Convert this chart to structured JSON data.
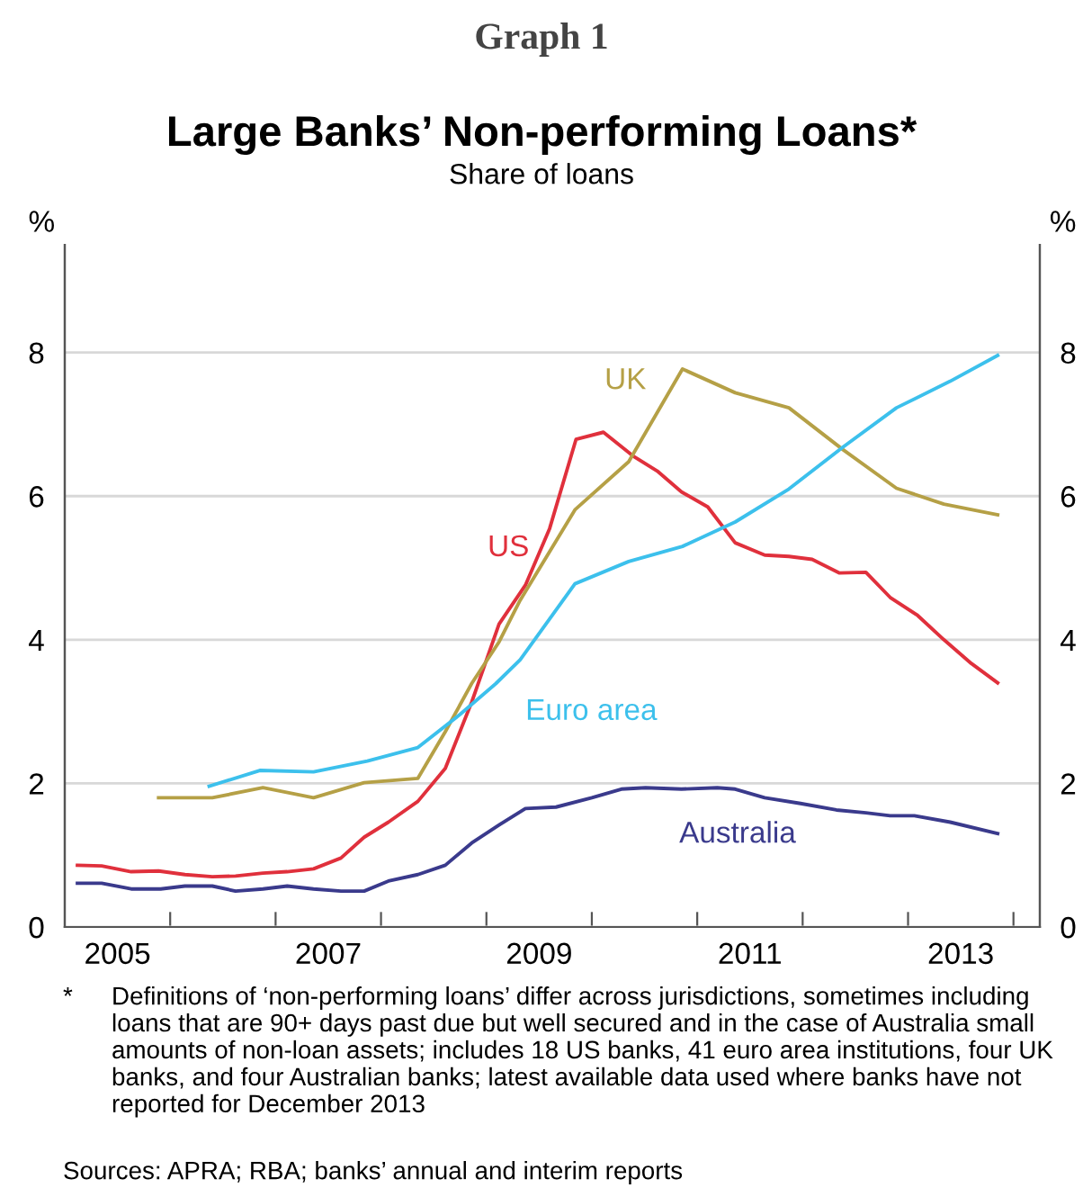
{
  "chart_data": {
    "type": "line",
    "title": "Large Banks’ Non-performing Loans*",
    "subtitle": "Share of loans",
    "ylabel": "%",
    "y2label": "%",
    "annotations": [
      "Graph 1",
      "*",
      "Definitions of ‘non-performing loans’ differ across jurisdictions, sometimes including loans that are 90+ days past due but well secured and in the case of Australia small amounts of non-loan assets; includes 18 US banks, 41 euro area institutions, four UK banks, and four Australian banks; latest available data used where banks have not reported for December 2013",
      "Sources: APRA; RBA; banks’ annual and interim reports"
    ],
    "series": [
      {
        "name": "US",
        "color": "#e0303c",
        "x": [
          2005.12,
          2005.35,
          2005.63,
          2005.89,
          2006.14,
          2006.4,
          2006.62,
          2006.88,
          2007.11,
          2007.36,
          2007.62,
          2007.84,
          2008.07,
          2008.35,
          2008.61,
          2008.86,
          2009.12,
          2009.37,
          2009.6,
          2009.85,
          2010.11,
          2010.39,
          2010.62,
          2010.85,
          2011.1,
          2011.36,
          2011.64,
          2011.87,
          2012.09,
          2012.35,
          2012.6,
          2012.83,
          2013.09,
          2013.34,
          2013.6,
          2013.85
        ],
        "values": [
          0.86,
          0.85,
          0.77,
          0.78,
          0.73,
          0.7,
          0.71,
          0.75,
          0.77,
          0.81,
          0.96,
          1.25,
          1.46,
          1.75,
          2.21,
          3.13,
          4.22,
          4.76,
          5.55,
          6.79,
          6.89,
          6.56,
          6.35,
          6.06,
          5.85,
          5.35,
          5.18,
          5.16,
          5.12,
          4.93,
          4.94,
          4.59,
          4.34,
          4.0,
          3.67,
          3.4
        ]
      },
      {
        "name": "UK",
        "color": "#b5a046",
        "x": [
          2005.89,
          2006.4,
          2006.88,
          2007.36,
          2007.84,
          2008.35,
          2008.61,
          2008.86,
          2009.12,
          2009.32,
          2009.84,
          2010.35,
          2010.86,
          2011.36,
          2011.87,
          2012.38,
          2012.89,
          2013.34,
          2013.85
        ],
        "values": [
          1.8,
          1.8,
          1.94,
          1.8,
          2.01,
          2.07,
          2.72,
          3.39,
          3.97,
          4.55,
          5.81,
          6.48,
          7.77,
          7.44,
          7.23,
          6.65,
          6.11,
          5.89,
          5.74
        ]
      },
      {
        "name": "Euro area",
        "color": "#3cc0ec",
        "x": [
          2006.37,
          2006.85,
          2007.36,
          2007.87,
          2008.35,
          2008.75,
          2009.09,
          2009.32,
          2009.84,
          2010.35,
          2010.86,
          2011.36,
          2011.87,
          2012.38,
          2012.89,
          2013.4,
          2013.85
        ],
        "values": [
          1.96,
          2.18,
          2.16,
          2.31,
          2.5,
          2.96,
          3.39,
          3.72,
          4.78,
          5.09,
          5.3,
          5.64,
          6.1,
          6.68,
          7.23,
          7.6,
          7.96
        ]
      },
      {
        "name": "Australia",
        "color": "#3a3a8c",
        "x": [
          2005.12,
          2005.35,
          2005.63,
          2005.91,
          2006.14,
          2006.4,
          2006.62,
          2006.88,
          2007.11,
          2007.36,
          2007.62,
          2007.84,
          2008.07,
          2008.35,
          2008.61,
          2008.86,
          2009.12,
          2009.37,
          2009.66,
          2010.0,
          2010.28,
          2010.51,
          2010.85,
          2011.19,
          2011.36,
          2011.64,
          2011.98,
          2012.32,
          2012.6,
          2012.83,
          2013.06,
          2013.4,
          2013.85
        ],
        "values": [
          0.61,
          0.61,
          0.53,
          0.53,
          0.57,
          0.57,
          0.5,
          0.53,
          0.57,
          0.53,
          0.5,
          0.5,
          0.64,
          0.73,
          0.86,
          1.17,
          1.42,
          1.65,
          1.67,
          1.8,
          1.92,
          1.94,
          1.92,
          1.94,
          1.92,
          1.8,
          1.72,
          1.63,
          1.59,
          1.55,
          1.55,
          1.46,
          1.3
        ]
      }
    ],
    "xlim": [
      2005,
      2014.25
    ],
    "xticks": [
      {
        "value": 2005.5,
        "label": "2005"
      },
      {
        "value": 2006,
        "label": null
      },
      {
        "value": 2007,
        "label": null
      },
      {
        "value": 2007.5,
        "label": "2007"
      },
      {
        "value": 2008,
        "label": null
      },
      {
        "value": 2009,
        "label": null
      },
      {
        "value": 2009.5,
        "label": "2009"
      },
      {
        "value": 2010,
        "label": null
      },
      {
        "value": 2011,
        "label": null
      },
      {
        "value": 2011.5,
        "label": "2011"
      },
      {
        "value": 2012,
        "label": null
      },
      {
        "value": 2013,
        "label": null
      },
      {
        "value": 2013.5,
        "label": "2013"
      },
      {
        "value": 2014,
        "label": null
      }
    ],
    "ylim": [
      0,
      9.5
    ],
    "yticks": [
      0,
      2,
      4,
      6,
      8
    ],
    "y2lim": [
      0,
      9.5
    ],
    "y2ticks": [
      0,
      2,
      4,
      6,
      8
    ],
    "grid": "y",
    "legend": false,
    "marker": "none",
    "line_style": "solid"
  }
}
